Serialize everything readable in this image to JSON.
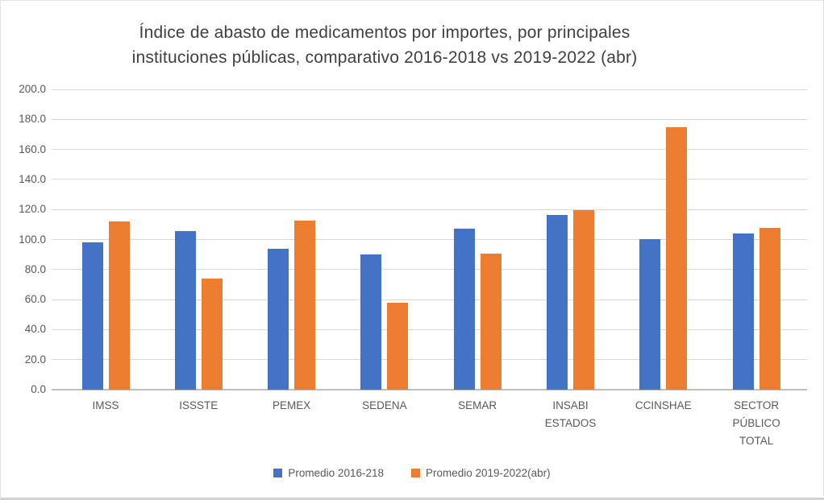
{
  "page": {
    "background": "#ffffff",
    "text_color": "#595959",
    "title_color": "#404040",
    "gridline_color": "#d9d9d9",
    "axis_line_color": "#bfbfbf"
  },
  "chart_data": {
    "type": "bar",
    "title_line1": "Índice de abasto de medicamentos por importes, por principales",
    "title_line2": "instituciones públicas, comparativo 2016-2018 vs 2019-2022 (abr)",
    "categories": [
      [
        "IMSS"
      ],
      [
        "ISSSTE"
      ],
      [
        "PEMEX"
      ],
      [
        "SEDENA"
      ],
      [
        "SEMAR"
      ],
      [
        "INSABI",
        "ESTADOS"
      ],
      [
        "CCINSHAE"
      ],
      [
        "SECTOR",
        "PÚBLICO",
        "TOTAL"
      ]
    ],
    "series": [
      {
        "name": "Promedio 2016-218",
        "color": "#4472C4",
        "values": [
          98,
          105.5,
          94,
          90,
          107,
          116.5,
          100.5,
          104
        ]
      },
      {
        "name": "Promedio 2019-2022(abr)",
        "color": "#ED7D31",
        "values": [
          112,
          74,
          112.5,
          58,
          90.5,
          119.5,
          175,
          108
        ]
      }
    ],
    "ylim": [
      0,
      200
    ],
    "ytick_step": 20,
    "ytick_labels": [
      "0.0",
      "20.0",
      "40.0",
      "60.0",
      "80.0",
      "100.0",
      "120.0",
      "140.0",
      "160.0",
      "180.0",
      "200.0"
    ],
    "grid": true,
    "legend_position": "bottom"
  }
}
